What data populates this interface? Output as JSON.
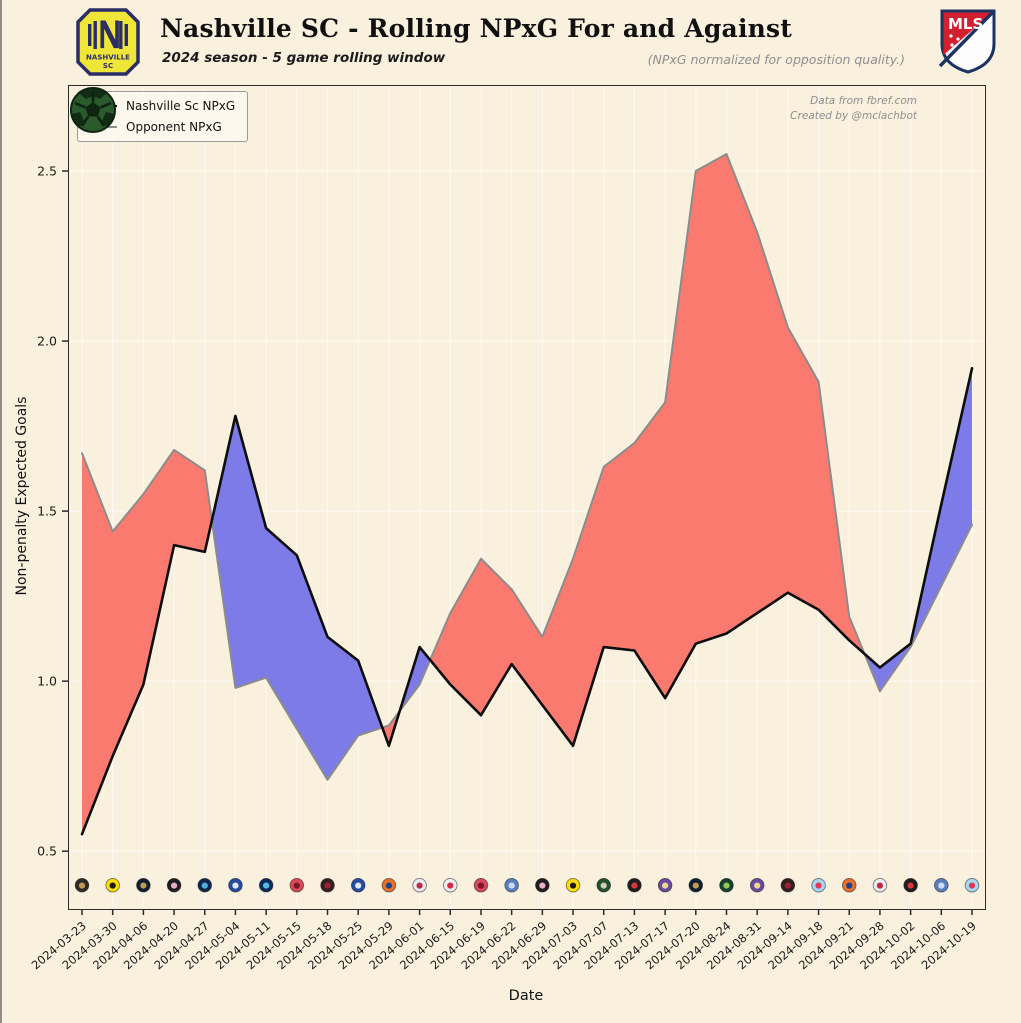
{
  "header": {
    "title": "Nashville SC - Rolling NPxG For and Against",
    "subtitle": "2024 season - 5 game rolling window",
    "note": "(NPxG normalized for opposition quality.)",
    "home_logo": {
      "line1": "NASHVILLE",
      "line2": "SC",
      "yellow": "#F0E63A",
      "navy": "#2A2D66"
    },
    "league_logo": {
      "label": "MLS",
      "red": "#D22030",
      "navy": "#1D3462"
    }
  },
  "attribution": {
    "line1": "Data from fbref.com",
    "line2": "Created by @mclachbot"
  },
  "legend": [
    {
      "label": "Nashville Sc NPxG",
      "color": "#0d0d0d"
    },
    {
      "label": "Opponent NPxG",
      "color": "#8c8c8c"
    }
  ],
  "chart_data": {
    "type": "line",
    "title": "Nashville SC - Rolling NPxG For and Against",
    "xlabel": "Date",
    "ylabel": "Non-penalty Expected Goals",
    "x": [
      "2024-03-23",
      "2024-03-30",
      "2024-04-06",
      "2024-04-20",
      "2024-04-27",
      "2024-05-04",
      "2024-05-11",
      "2024-05-15",
      "2024-05-18",
      "2024-05-25",
      "2024-05-29",
      "2024-06-01",
      "2024-06-15",
      "2024-06-19",
      "2024-06-22",
      "2024-06-29",
      "2024-07-03",
      "2024-07-07",
      "2024-07-13",
      "2024-07-17",
      "2024-07-20",
      "2024-08-24",
      "2024-08-31",
      "2024-09-14",
      "2024-09-18",
      "2024-09-21",
      "2024-09-28",
      "2024-10-02",
      "2024-10-06",
      "2024-10-19"
    ],
    "series": [
      {
        "name": "Nashville Sc NPxG",
        "color": "#0d0d0d",
        "values": [
          0.55,
          0.78,
          0.99,
          1.4,
          1.38,
          1.78,
          1.45,
          1.37,
          1.13,
          1.06,
          0.81,
          1.1,
          0.99,
          0.9,
          1.05,
          0.93,
          0.81,
          1.1,
          1.09,
          0.95,
          1.11,
          1.14,
          1.2,
          1.26,
          1.21,
          1.12,
          1.04,
          1.11,
          1.52,
          1.92
        ]
      },
      {
        "name": "Opponent NPxG",
        "color": "#8c8c8c",
        "values": [
          1.67,
          1.44,
          1.55,
          1.68,
          1.62,
          0.98,
          1.01,
          0.86,
          0.71,
          0.84,
          0.87,
          0.99,
          1.2,
          1.36,
          1.27,
          1.13,
          1.36,
          1.63,
          1.7,
          1.82,
          2.5,
          2.55,
          2.32,
          2.04,
          1.88,
          1.19,
          0.97,
          1.1,
          1.28,
          1.46
        ]
      }
    ],
    "fill_colors": {
      "nashville_above": "#7d7be8",
      "opponent_above": "#fb7a70"
    },
    "yticks": [
      0.5,
      1.0,
      1.5,
      2.0,
      2.5
    ],
    "ylim": [
      0.33,
      2.75
    ],
    "grid": true,
    "grid_color": "rgba(255,255,255,0.55)",
    "tick_color": "#2b2b2b",
    "logo_row_value": 0.4,
    "opponent_logos": [
      {
        "team": "lafc",
        "bg": "#2E2A26",
        "accent": "#C8A15A"
      },
      {
        "team": "columbus-crew",
        "bg": "#FCDD09",
        "accent": "#121212"
      },
      {
        "team": "philadelphia-union",
        "bg": "#0E1F2F",
        "accent": "#C9A254"
      },
      {
        "team": "inter-miami",
        "bg": "#1E1E20",
        "accent": "#F2B6CE"
      },
      {
        "team": "san-jose-earthquakes",
        "bg": "#11254C",
        "accent": "#53B7E0"
      },
      {
        "team": "cf-montreal",
        "bg": "#234B9E",
        "accent": "#E8EEF8"
      },
      {
        "team": "charlotte-fc",
        "bg": "#0B2B5C",
        "accent": "#57C5E8"
      },
      {
        "team": "toronto-fc",
        "bg": "#D8495A",
        "accent": "#7A1325"
      },
      {
        "team": "atlanta-united",
        "bg": "#33201E",
        "accent": "#A3233A"
      },
      {
        "team": "cf-montreal",
        "bg": "#234B9E",
        "accent": "#E8EEF8"
      },
      {
        "team": "fc-cincinnati",
        "bg": "#E8702B",
        "accent": "#11408F"
      },
      {
        "team": "new-england-revolution",
        "bg": "#E9EBF2",
        "accent": "#B92138"
      },
      {
        "team": "ny-red-bulls",
        "bg": "#EDECEF",
        "accent": "#D4203C"
      },
      {
        "team": "toronto-fc",
        "bg": "#D8495A",
        "accent": "#7A1325"
      },
      {
        "team": "nycfc",
        "bg": "#5A7FC0",
        "accent": "#D6E0F2"
      },
      {
        "team": "inter-miami",
        "bg": "#1E1E20",
        "accent": "#F2B6CE"
      },
      {
        "team": "columbus-crew",
        "bg": "#FCDD09",
        "accent": "#121212"
      },
      {
        "team": "portland-timbers",
        "bg": "#244E30",
        "accent": "#D8D3BC"
      },
      {
        "team": "dc-united",
        "bg": "#201D1E",
        "accent": "#E23A3E"
      },
      {
        "team": "orlando-city",
        "bg": "#6A4A9E",
        "accent": "#EFE08C"
      },
      {
        "team": "philadelphia-union",
        "bg": "#0E1F2F",
        "accent": "#C9A254"
      },
      {
        "team": "austin-fc",
        "bg": "#17422E",
        "accent": "#9CCE58"
      },
      {
        "team": "orlando-city",
        "bg": "#6A4A9E",
        "accent": "#EFE08C"
      },
      {
        "team": "atlanta-united",
        "bg": "#33201E",
        "accent": "#A3233A"
      },
      {
        "team": "chicago-fire",
        "bg": "#A5D7F0",
        "accent": "#E5304C"
      },
      {
        "team": "fc-cincinnati",
        "bg": "#E8702B",
        "accent": "#11408F"
      },
      {
        "team": "new-england-revolution",
        "bg": "#E9EBF2",
        "accent": "#B92138"
      },
      {
        "team": "dc-united",
        "bg": "#201D1E",
        "accent": "#E23A3E"
      },
      {
        "team": "nycfc",
        "bg": "#5A7FC0",
        "accent": "#D6E0F2"
      },
      {
        "team": "chicago-fire",
        "bg": "#A5D7F0",
        "accent": "#E5304C"
      }
    ]
  }
}
